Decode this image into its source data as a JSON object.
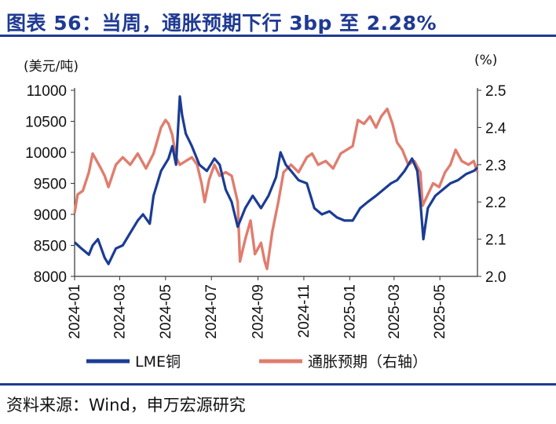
{
  "title": "图表 56：当周，通胀预期下行 3bp 至 2.28%",
  "source": "资料来源：Wind，申万宏源研究",
  "colors": {
    "accent": "#1f3a93",
    "series_left": "#1b3c94",
    "series_right": "#e07d6e"
  },
  "chart_data": {
    "type": "line",
    "title": "图表 56：当周，通胀预期下行 3bp 至 2.28%",
    "y_left": {
      "label": "(美元/吨)",
      "ticks": [
        "11000",
        "10500",
        "10000",
        "9500",
        "9000",
        "8500",
        "8000"
      ],
      "range": [
        8000,
        11000
      ]
    },
    "y_right": {
      "label": "(%)",
      "ticks": [
        "2.5",
        "2.4",
        "2.3",
        "2.2",
        "2.1",
        "2.0"
      ],
      "range": [
        2.0,
        2.5
      ]
    },
    "x_ticks": [
      "2024-01",
      "2024-03",
      "2024-05",
      "2024-07",
      "2024-09",
      "2024-11",
      "2025-01",
      "2025-03",
      "2025-05"
    ],
    "x_range": [
      "2024-01-01",
      "2025-06-20"
    ],
    "grid": false,
    "legend_position": "bottom",
    "series": [
      {
        "name": "LME铜",
        "axis": "left",
        "points": [
          [
            "2024-01-01",
            8550
          ],
          [
            "2024-01-10",
            8450
          ],
          [
            "2024-01-20",
            8350
          ],
          [
            "2024-01-25",
            8500
          ],
          [
            "2024-02-01",
            8600
          ],
          [
            "2024-02-10",
            8300
          ],
          [
            "2024-02-15",
            8200
          ],
          [
            "2024-02-25",
            8450
          ],
          [
            "2024-03-05",
            8500
          ],
          [
            "2024-03-15",
            8700
          ],
          [
            "2024-03-25",
            8900
          ],
          [
            "2024-04-01",
            9000
          ],
          [
            "2024-04-10",
            8850
          ],
          [
            "2024-04-15",
            9300
          ],
          [
            "2024-04-25",
            9700
          ],
          [
            "2024-05-05",
            9900
          ],
          [
            "2024-05-10",
            10100
          ],
          [
            "2024-05-15",
            9800
          ],
          [
            "2024-05-20",
            10900
          ],
          [
            "2024-05-23",
            10600
          ],
          [
            "2024-05-28",
            10300
          ],
          [
            "2024-06-05",
            10100
          ],
          [
            "2024-06-15",
            9800
          ],
          [
            "2024-06-25",
            9700
          ],
          [
            "2024-07-05",
            9900
          ],
          [
            "2024-07-12",
            9800
          ],
          [
            "2024-07-20",
            9400
          ],
          [
            "2024-07-28",
            9200
          ],
          [
            "2024-08-05",
            8800
          ],
          [
            "2024-08-15",
            9100
          ],
          [
            "2024-08-25",
            9300
          ],
          [
            "2024-09-05",
            9100
          ],
          [
            "2024-09-15",
            9300
          ],
          [
            "2024-09-25",
            9600
          ],
          [
            "2024-10-01",
            10000
          ],
          [
            "2024-10-08",
            9800
          ],
          [
            "2024-10-15",
            9700
          ],
          [
            "2024-10-25",
            9550
          ],
          [
            "2024-11-05",
            9500
          ],
          [
            "2024-11-15",
            9100
          ],
          [
            "2024-11-25",
            9000
          ],
          [
            "2024-12-05",
            9050
          ],
          [
            "2024-12-15",
            8950
          ],
          [
            "2024-12-25",
            8900
          ],
          [
            "2025-01-05",
            8900
          ],
          [
            "2025-01-15",
            9100
          ],
          [
            "2025-01-25",
            9200
          ],
          [
            "2025-02-05",
            9300
          ],
          [
            "2025-02-15",
            9400
          ],
          [
            "2025-02-25",
            9500
          ],
          [
            "2025-03-05",
            9550
          ],
          [
            "2025-03-15",
            9700
          ],
          [
            "2025-03-25",
            9900
          ],
          [
            "2025-04-01",
            9700
          ],
          [
            "2025-04-05",
            9200
          ],
          [
            "2025-04-09",
            8600
          ],
          [
            "2025-04-15",
            9100
          ],
          [
            "2025-04-25",
            9300
          ],
          [
            "2025-05-05",
            9400
          ],
          [
            "2025-05-15",
            9500
          ],
          [
            "2025-05-25",
            9550
          ],
          [
            "2025-06-05",
            9650
          ],
          [
            "2025-06-15",
            9700
          ],
          [
            "2025-06-20",
            9750
          ]
        ]
      },
      {
        "name": "通胀预期（右轴）",
        "axis": "right",
        "points": [
          [
            "2024-01-01",
            2.17
          ],
          [
            "2024-01-05",
            2.22
          ],
          [
            "2024-01-12",
            2.23
          ],
          [
            "2024-01-20",
            2.28
          ],
          [
            "2024-01-25",
            2.33
          ],
          [
            "2024-02-05",
            2.29
          ],
          [
            "2024-02-10",
            2.27
          ],
          [
            "2024-02-15",
            2.24
          ],
          [
            "2024-02-25",
            2.3
          ],
          [
            "2024-03-05",
            2.32
          ],
          [
            "2024-03-15",
            2.3
          ],
          [
            "2024-03-25",
            2.33
          ],
          [
            "2024-04-05",
            2.29
          ],
          [
            "2024-04-15",
            2.33
          ],
          [
            "2024-04-25",
            2.4
          ],
          [
            "2024-05-01",
            2.42
          ],
          [
            "2024-05-05",
            2.41
          ],
          [
            "2024-05-10",
            2.38
          ],
          [
            "2024-05-15",
            2.32
          ],
          [
            "2024-05-20",
            2.3
          ],
          [
            "2024-05-28",
            2.31
          ],
          [
            "2024-06-05",
            2.32
          ],
          [
            "2024-06-12",
            2.3
          ],
          [
            "2024-06-18",
            2.25
          ],
          [
            "2024-06-22",
            2.2
          ],
          [
            "2024-06-28",
            2.26
          ],
          [
            "2024-07-05",
            2.3
          ],
          [
            "2024-07-12",
            2.27
          ],
          [
            "2024-07-20",
            2.28
          ],
          [
            "2024-07-28",
            2.27
          ],
          [
            "2024-08-05",
            2.2
          ],
          [
            "2024-08-08",
            2.04
          ],
          [
            "2024-08-15",
            2.1
          ],
          [
            "2024-08-22",
            2.15
          ],
          [
            "2024-08-28",
            2.06
          ],
          [
            "2024-09-05",
            2.09
          ],
          [
            "2024-09-10",
            2.04
          ],
          [
            "2024-09-13",
            2.02
          ],
          [
            "2024-09-20",
            2.12
          ],
          [
            "2024-09-28",
            2.2
          ],
          [
            "2024-10-05",
            2.28
          ],
          [
            "2024-10-15",
            2.3
          ],
          [
            "2024-10-25",
            2.28
          ],
          [
            "2024-11-05",
            2.32
          ],
          [
            "2024-11-12",
            2.33
          ],
          [
            "2024-11-20",
            2.3
          ],
          [
            "2024-11-30",
            2.31
          ],
          [
            "2024-12-10",
            2.29
          ],
          [
            "2024-12-20",
            2.33
          ],
          [
            "2024-12-28",
            2.34
          ],
          [
            "2025-01-05",
            2.35
          ],
          [
            "2025-01-12",
            2.42
          ],
          [
            "2025-01-20",
            2.41
          ],
          [
            "2025-01-28",
            2.43
          ],
          [
            "2025-02-05",
            2.4
          ],
          [
            "2025-02-12",
            2.43
          ],
          [
            "2025-02-20",
            2.45
          ],
          [
            "2025-02-27",
            2.41
          ],
          [
            "2025-03-05",
            2.36
          ],
          [
            "2025-03-12",
            2.34
          ],
          [
            "2025-03-20",
            2.3
          ],
          [
            "2025-03-28",
            2.31
          ],
          [
            "2025-04-05",
            2.28
          ],
          [
            "2025-04-08",
            2.19
          ],
          [
            "2025-04-15",
            2.22
          ],
          [
            "2025-04-22",
            2.25
          ],
          [
            "2025-04-30",
            2.24
          ],
          [
            "2025-05-08",
            2.28
          ],
          [
            "2025-05-15",
            2.3
          ],
          [
            "2025-05-22",
            2.34
          ],
          [
            "2025-05-30",
            2.31
          ],
          [
            "2025-06-08",
            2.3
          ],
          [
            "2025-06-15",
            2.31
          ],
          [
            "2025-06-20",
            2.28
          ]
        ]
      }
    ]
  }
}
